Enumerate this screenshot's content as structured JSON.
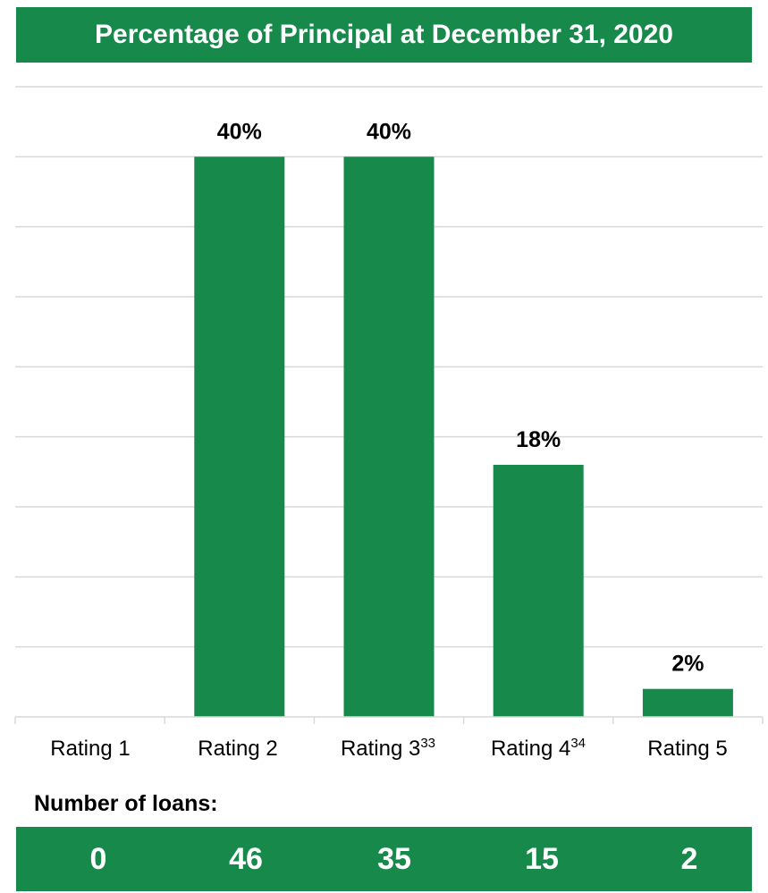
{
  "title": "Percentage of Principal at December 31, 2020",
  "chart_data": {
    "type": "bar",
    "title": "Percentage of Principal at December 31, 2020",
    "categories": [
      "Rating 1",
      "Rating 2",
      "Rating 3",
      "Rating 4",
      "Rating 5"
    ],
    "category_superscripts": [
      "",
      "",
      "33",
      "34",
      ""
    ],
    "values": [
      0,
      40,
      40,
      18,
      2
    ],
    "value_labels": [
      "",
      "40%",
      "40%",
      "18%",
      "2%"
    ],
    "unit": "%",
    "ylim": [
      0,
      45
    ],
    "grid": true,
    "bar_color": "#178a4b"
  },
  "loans": {
    "label": "Number of loans:",
    "counts": [
      "0",
      "46",
      "35",
      "15",
      "2"
    ]
  },
  "colors": {
    "accent": "#178a4b"
  }
}
